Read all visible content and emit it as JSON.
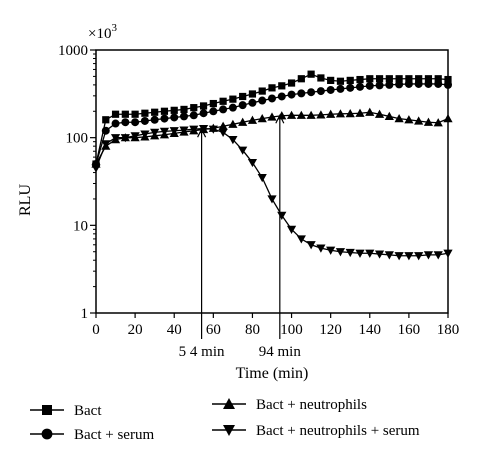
{
  "chart_data": {
    "type": "line",
    "title": "",
    "xlabel": "Time (min)",
    "ylabel": "RLU",
    "y_multiplier_label": "×10",
    "y_multiplier_exp": "3",
    "xlim": [
      0,
      180
    ],
    "ylim": [
      1,
      1000
    ],
    "y_scale": "log",
    "x_ticks": [
      0,
      20,
      40,
      60,
      80,
      100,
      120,
      140,
      160,
      180
    ],
    "y_ticks": [
      1,
      10,
      100,
      1000
    ],
    "y_tick_labels": [
      "1",
      "10",
      "100",
      "1000"
    ],
    "grid": false,
    "legend_position": "bottom",
    "annotations": [
      {
        "x": 54,
        "label": "5 4 min",
        "arrow_top_y": 125
      },
      {
        "x": 94,
        "label": "94 min",
        "arrow_top_y": 180
      }
    ],
    "series": [
      {
        "name": "Bact",
        "marker": "square",
        "x": [
          0,
          5,
          10,
          15,
          20,
          25,
          30,
          35,
          40,
          45,
          50,
          55,
          60,
          65,
          70,
          75,
          80,
          85,
          90,
          95,
          100,
          105,
          110,
          115,
          120,
          125,
          130,
          135,
          140,
          145,
          150,
          155,
          160,
          165,
          170,
          175,
          180
        ],
        "y": [
          50,
          160,
          185,
          185,
          185,
          190,
          195,
          200,
          205,
          210,
          220,
          230,
          245,
          260,
          275,
          295,
          315,
          340,
          370,
          390,
          420,
          470,
          530,
          480,
          450,
          440,
          450,
          460,
          470,
          470,
          470,
          470,
          470,
          470,
          470,
          470,
          460
        ]
      },
      {
        "name": "Bact + serum",
        "marker": "circle",
        "x": [
          0,
          5,
          10,
          15,
          20,
          25,
          30,
          35,
          40,
          45,
          50,
          55,
          60,
          65,
          70,
          75,
          80,
          85,
          90,
          95,
          100,
          105,
          110,
          115,
          120,
          125,
          130,
          135,
          140,
          145,
          150,
          155,
          160,
          165,
          170,
          175,
          180
        ],
        "y": [
          50,
          120,
          145,
          150,
          150,
          155,
          160,
          165,
          170,
          175,
          180,
          190,
          200,
          210,
          220,
          235,
          250,
          265,
          280,
          295,
          310,
          320,
          330,
          340,
          350,
          360,
          370,
          380,
          390,
          395,
          400,
          405,
          410,
          410,
          410,
          410,
          400
        ]
      },
      {
        "name": "Bact + neutrophils",
        "marker": "triangle-up",
        "x": [
          0,
          5,
          10,
          15,
          20,
          25,
          30,
          35,
          40,
          45,
          50,
          55,
          60,
          65,
          70,
          75,
          80,
          85,
          90,
          95,
          100,
          105,
          110,
          115,
          120,
          125,
          130,
          135,
          140,
          145,
          150,
          155,
          160,
          165,
          170,
          175,
          180
        ],
        "y": [
          50,
          80,
          95,
          100,
          100,
          102,
          105,
          108,
          112,
          116,
          120,
          124,
          128,
          135,
          142,
          150,
          158,
          165,
          172,
          178,
          180,
          180,
          180,
          182,
          185,
          187,
          188,
          190,
          195,
          185,
          175,
          165,
          160,
          155,
          150,
          148,
          165
        ]
      },
      {
        "name": "Bact + neutrophils + serum",
        "marker": "triangle-down",
        "x": [
          0,
          5,
          10,
          15,
          20,
          25,
          30,
          35,
          40,
          45,
          50,
          55,
          60,
          65,
          70,
          75,
          80,
          85,
          90,
          95,
          100,
          105,
          110,
          115,
          120,
          125,
          130,
          135,
          140,
          145,
          150,
          155,
          160,
          165,
          170,
          175,
          180
        ],
        "y": [
          45,
          85,
          100,
          100,
          105,
          110,
          115,
          118,
          120,
          122,
          125,
          127,
          125,
          115,
          95,
          72,
          52,
          35,
          20,
          13,
          9,
          7,
          6,
          5.5,
          5.2,
          5,
          4.9,
          4.8,
          4.8,
          4.7,
          4.6,
          4.5,
          4.5,
          4.5,
          4.6,
          4.6,
          4.8
        ]
      }
    ]
  }
}
